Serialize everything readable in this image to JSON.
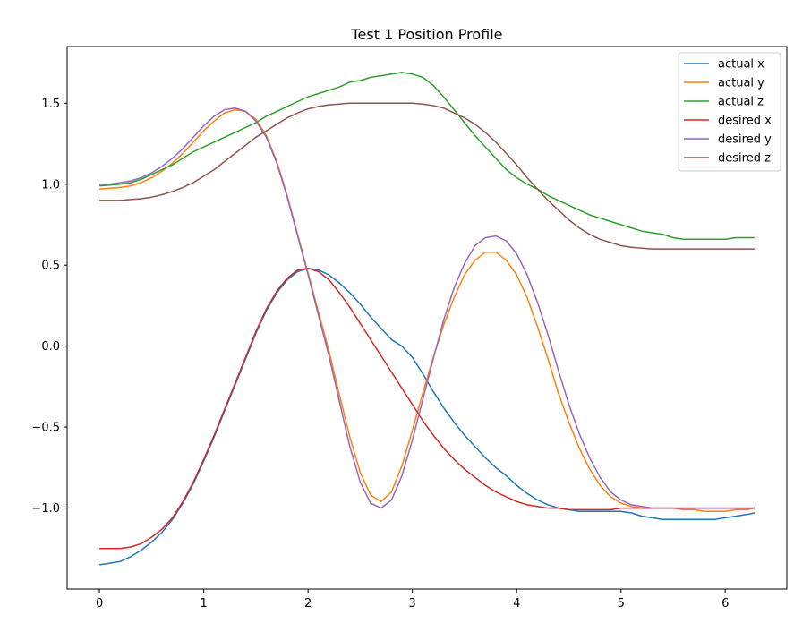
{
  "chart_data": {
    "type": "line",
    "title": "Test 1 Position Profile",
    "xlabel": "",
    "ylabel": "",
    "xlim": [
      -0.31,
      6.59
    ],
    "ylim": [
      -1.5,
      1.85
    ],
    "x_ticks": [
      0,
      1,
      2,
      3,
      4,
      5,
      6
    ],
    "y_ticks": [
      -1.0,
      -0.5,
      0.0,
      0.5,
      1.0,
      1.5
    ],
    "x_tick_labels": [
      "0",
      "1",
      "2",
      "3",
      "4",
      "5",
      "6"
    ],
    "y_tick_labels": [
      "−1.0",
      "−0.5",
      "0.0",
      "0.5",
      "1.0",
      "1.5"
    ],
    "grid": false,
    "legend_position": "top-right",
    "series": [
      {
        "name": "actual x",
        "color": "#1f77b4",
        "x": [
          0,
          0.1,
          0.2,
          0.3,
          0.4,
          0.5,
          0.6,
          0.7,
          0.8,
          0.9,
          1.0,
          1.1,
          1.2,
          1.3,
          1.4,
          1.5,
          1.6,
          1.7,
          1.8,
          1.9,
          2.0,
          2.1,
          2.2,
          2.3,
          2.4,
          2.5,
          2.6,
          2.7,
          2.8,
          2.9,
          3.0,
          3.1,
          3.2,
          3.3,
          3.4,
          3.5,
          3.6,
          3.7,
          3.8,
          3.9,
          4.0,
          4.1,
          4.2,
          4.3,
          4.4,
          4.5,
          4.6,
          4.7,
          4.8,
          4.9,
          5.0,
          5.1,
          5.2,
          5.3,
          5.4,
          5.5,
          5.6,
          5.7,
          5.8,
          5.9,
          6.0,
          6.1,
          6.2,
          6.28
        ],
        "y": [
          -1.35,
          -1.34,
          -1.33,
          -1.3,
          -1.26,
          -1.21,
          -1.15,
          -1.07,
          -0.97,
          -0.85,
          -0.71,
          -0.56,
          -0.4,
          -0.24,
          -0.08,
          0.08,
          0.22,
          0.33,
          0.41,
          0.46,
          0.48,
          0.47,
          0.44,
          0.39,
          0.33,
          0.26,
          0.18,
          0.11,
          0.04,
          0.0,
          -0.07,
          -0.17,
          -0.28,
          -0.38,
          -0.47,
          -0.55,
          -0.62,
          -0.69,
          -0.75,
          -0.8,
          -0.86,
          -0.91,
          -0.95,
          -0.98,
          -1.0,
          -1.01,
          -1.02,
          -1.02,
          -1.02,
          -1.02,
          -1.02,
          -1.03,
          -1.05,
          -1.06,
          -1.07,
          -1.07,
          -1.07,
          -1.07,
          -1.07,
          -1.07,
          -1.06,
          -1.05,
          -1.04,
          -1.03
        ]
      },
      {
        "name": "actual y",
        "color": "#ff7f0e",
        "x": [
          0,
          0.1,
          0.2,
          0.3,
          0.4,
          0.5,
          0.6,
          0.7,
          0.8,
          0.9,
          1.0,
          1.1,
          1.2,
          1.3,
          1.4,
          1.5,
          1.6,
          1.7,
          1.8,
          1.9,
          2.0,
          2.1,
          2.2,
          2.3,
          2.4,
          2.5,
          2.6,
          2.7,
          2.8,
          2.9,
          3.0,
          3.1,
          3.2,
          3.3,
          3.4,
          3.5,
          3.6,
          3.7,
          3.8,
          3.9,
          4.0,
          4.1,
          4.2,
          4.3,
          4.4,
          4.5,
          4.6,
          4.7,
          4.8,
          4.9,
          5.0,
          5.1,
          5.2,
          5.3,
          5.4,
          5.5,
          5.6,
          5.7,
          5.8,
          5.9,
          6.0,
          6.1,
          6.2,
          6.28
        ],
        "y": [
          0.97,
          0.975,
          0.98,
          0.99,
          1.01,
          1.04,
          1.08,
          1.13,
          1.19,
          1.26,
          1.33,
          1.39,
          1.44,
          1.46,
          1.45,
          1.4,
          1.3,
          1.14,
          0.93,
          0.69,
          0.45,
          0.21,
          -0.03,
          -0.3,
          -0.56,
          -0.78,
          -0.92,
          -0.96,
          -0.9,
          -0.74,
          -0.52,
          -0.29,
          -0.07,
          0.13,
          0.3,
          0.44,
          0.53,
          0.58,
          0.58,
          0.53,
          0.44,
          0.3,
          0.12,
          -0.08,
          -0.29,
          -0.47,
          -0.63,
          -0.76,
          -0.86,
          -0.93,
          -0.97,
          -0.99,
          -1.0,
          -1.0,
          -1.0,
          -1.0,
          -1.01,
          -1.01,
          -1.02,
          -1.02,
          -1.02,
          -1.01,
          -1.01,
          -1.0
        ]
      },
      {
        "name": "actual z",
        "color": "#2ca02c",
        "x": [
          0,
          0.1,
          0.2,
          0.3,
          0.4,
          0.5,
          0.6,
          0.7,
          0.8,
          0.9,
          1.0,
          1.1,
          1.2,
          1.3,
          1.4,
          1.5,
          1.6,
          1.7,
          1.8,
          1.9,
          2.0,
          2.1,
          2.2,
          2.3,
          2.4,
          2.5,
          2.6,
          2.7,
          2.8,
          2.9,
          3.0,
          3.1,
          3.2,
          3.3,
          3.4,
          3.5,
          3.6,
          3.7,
          3.8,
          3.9,
          4.0,
          4.1,
          4.2,
          4.3,
          4.4,
          4.5,
          4.6,
          4.7,
          4.8,
          4.9,
          5.0,
          5.1,
          5.2,
          5.3,
          5.4,
          5.5,
          5.6,
          5.7,
          5.8,
          5.9,
          6.0,
          6.1,
          6.2,
          6.28
        ],
        "y": [
          0.99,
          0.995,
          1.0,
          1.01,
          1.03,
          1.06,
          1.09,
          1.12,
          1.16,
          1.2,
          1.23,
          1.26,
          1.29,
          1.32,
          1.35,
          1.38,
          1.42,
          1.45,
          1.48,
          1.51,
          1.54,
          1.56,
          1.58,
          1.6,
          1.63,
          1.64,
          1.66,
          1.67,
          1.68,
          1.69,
          1.68,
          1.66,
          1.61,
          1.54,
          1.46,
          1.38,
          1.3,
          1.23,
          1.16,
          1.09,
          1.04,
          1.0,
          0.97,
          0.93,
          0.9,
          0.87,
          0.84,
          0.81,
          0.79,
          0.77,
          0.75,
          0.73,
          0.71,
          0.7,
          0.69,
          0.67,
          0.66,
          0.66,
          0.66,
          0.66,
          0.66,
          0.67,
          0.67,
          0.67
        ]
      },
      {
        "name": "desired x",
        "color": "#d62728",
        "x": [
          0,
          0.1,
          0.2,
          0.3,
          0.4,
          0.5,
          0.6,
          0.7,
          0.8,
          0.9,
          1.0,
          1.1,
          1.2,
          1.3,
          1.4,
          1.5,
          1.6,
          1.7,
          1.8,
          1.9,
          2.0,
          2.1,
          2.2,
          2.3,
          2.4,
          2.5,
          2.6,
          2.7,
          2.8,
          2.9,
          3.0,
          3.1,
          3.2,
          3.3,
          3.4,
          3.5,
          3.6,
          3.7,
          3.8,
          3.9,
          4.0,
          4.1,
          4.2,
          4.3,
          4.4,
          4.5,
          4.6,
          4.7,
          4.8,
          4.9,
          5.0,
          5.1,
          5.2,
          5.3,
          5.4,
          5.5,
          5.6,
          5.7,
          5.8,
          5.9,
          6.0,
          6.1,
          6.2,
          6.28
        ],
        "y": [
          -1.25,
          -1.25,
          -1.25,
          -1.24,
          -1.22,
          -1.18,
          -1.13,
          -1.06,
          -0.96,
          -0.84,
          -0.7,
          -0.55,
          -0.39,
          -0.23,
          -0.07,
          0.09,
          0.23,
          0.34,
          0.42,
          0.47,
          0.48,
          0.46,
          0.41,
          0.33,
          0.24,
          0.14,
          0.04,
          -0.06,
          -0.16,
          -0.26,
          -0.36,
          -0.46,
          -0.55,
          -0.63,
          -0.7,
          -0.76,
          -0.81,
          -0.86,
          -0.9,
          -0.93,
          -0.96,
          -0.98,
          -0.99,
          -1.0,
          -1.0,
          -1.01,
          -1.01,
          -1.01,
          -1.01,
          -1.01,
          -1.0,
          -1.0,
          -1.0,
          -1.0,
          -1.0,
          -1.0,
          -1.0,
          -1.0,
          -1.0,
          -1.0,
          -1.0,
          -1.0,
          -1.0,
          -1.0
        ]
      },
      {
        "name": "desired y",
        "color": "#9467bd",
        "x": [
          0,
          0.1,
          0.2,
          0.3,
          0.4,
          0.5,
          0.6,
          0.7,
          0.8,
          0.9,
          1.0,
          1.1,
          1.2,
          1.3,
          1.4,
          1.5,
          1.6,
          1.7,
          1.8,
          1.9,
          2.0,
          2.1,
          2.2,
          2.3,
          2.4,
          2.5,
          2.6,
          2.7,
          2.8,
          2.9,
          3.0,
          3.1,
          3.2,
          3.3,
          3.4,
          3.5,
          3.6,
          3.7,
          3.8,
          3.9,
          4.0,
          4.1,
          4.2,
          4.3,
          4.4,
          4.5,
          4.6,
          4.7,
          4.8,
          4.9,
          5.0,
          5.1,
          5.2,
          5.3,
          5.4,
          5.5,
          5.6,
          5.7,
          5.8,
          5.9,
          6.0,
          6.1,
          6.2,
          6.28
        ],
        "y": [
          1.0,
          1.0,
          1.01,
          1.02,
          1.04,
          1.07,
          1.11,
          1.16,
          1.22,
          1.29,
          1.36,
          1.42,
          1.46,
          1.47,
          1.45,
          1.39,
          1.29,
          1.13,
          0.92,
          0.68,
          0.44,
          0.19,
          -0.06,
          -0.34,
          -0.62,
          -0.84,
          -0.97,
          -1.0,
          -0.95,
          -0.8,
          -0.58,
          -0.33,
          -0.08,
          0.16,
          0.36,
          0.51,
          0.62,
          0.67,
          0.68,
          0.65,
          0.57,
          0.44,
          0.27,
          0.07,
          -0.15,
          -0.36,
          -0.54,
          -0.69,
          -0.81,
          -0.9,
          -0.95,
          -0.98,
          -0.99,
          -1.0,
          -1.0,
          -1.0,
          -1.0,
          -1.0,
          -1.0,
          -1.0,
          -1.0,
          -1.0,
          -1.0,
          -1.0
        ]
      },
      {
        "name": "desired z",
        "color": "#8c564b",
        "x": [
          0,
          0.1,
          0.2,
          0.3,
          0.4,
          0.5,
          0.6,
          0.7,
          0.8,
          0.9,
          1.0,
          1.1,
          1.2,
          1.3,
          1.4,
          1.5,
          1.6,
          1.7,
          1.8,
          1.9,
          2.0,
          2.1,
          2.2,
          2.3,
          2.4,
          2.5,
          2.6,
          2.7,
          2.8,
          2.9,
          3.0,
          3.1,
          3.2,
          3.3,
          3.4,
          3.5,
          3.6,
          3.7,
          3.8,
          3.9,
          4.0,
          4.1,
          4.2,
          4.3,
          4.4,
          4.5,
          4.6,
          4.7,
          4.8,
          4.9,
          5.0,
          5.1,
          5.2,
          5.3,
          5.4,
          5.5,
          5.6,
          5.7,
          5.8,
          5.9,
          6.0,
          6.1,
          6.2,
          6.28
        ],
        "y": [
          0.9,
          0.9,
          0.9,
          0.905,
          0.91,
          0.92,
          0.935,
          0.955,
          0.98,
          1.01,
          1.05,
          1.09,
          1.14,
          1.19,
          1.24,
          1.29,
          1.33,
          1.37,
          1.41,
          1.44,
          1.465,
          1.48,
          1.49,
          1.495,
          1.5,
          1.5,
          1.5,
          1.5,
          1.5,
          1.5,
          1.5,
          1.495,
          1.485,
          1.47,
          1.44,
          1.41,
          1.37,
          1.32,
          1.26,
          1.19,
          1.12,
          1.04,
          0.97,
          0.9,
          0.84,
          0.78,
          0.73,
          0.69,
          0.66,
          0.64,
          0.62,
          0.61,
          0.605,
          0.6,
          0.6,
          0.6,
          0.6,
          0.6,
          0.6,
          0.6,
          0.6,
          0.6,
          0.6,
          0.6
        ]
      }
    ]
  }
}
